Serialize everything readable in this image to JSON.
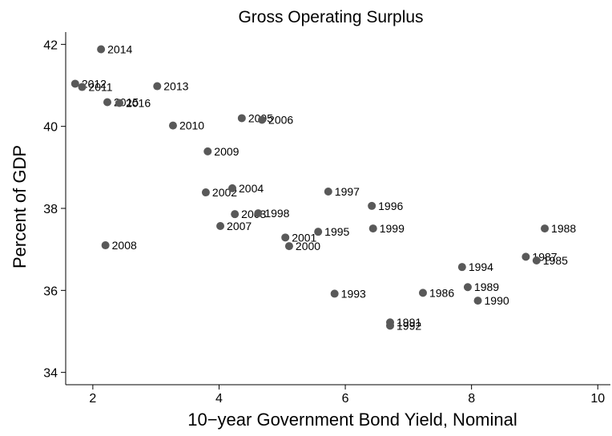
{
  "chart_data": {
    "type": "scatter",
    "title": "Gross Operating Surplus",
    "xlabel": "10−year Government Bond Yield, Nominal",
    "ylabel": "Percent of GDP",
    "color": "#595959",
    "labels": [
      "2014",
      "2012",
      "2011",
      "2013",
      "2015",
      "2016",
      "2010",
      "2005",
      "2006",
      "2009",
      "2002",
      "2004",
      "2003",
      "1998",
      "2007",
      "2008",
      "1997",
      "1996",
      "1999",
      "1995",
      "2001",
      "2000",
      "1988",
      "1987",
      "1985",
      "1994",
      "1989",
      "1990",
      "1986",
      "1993",
      "1991",
      "1992"
    ],
    "x": [
      2.13,
      1.72,
      1.83,
      3.02,
      2.23,
      2.42,
      3.27,
      4.36,
      4.68,
      3.82,
      3.79,
      4.21,
      4.25,
      4.62,
      4.02,
      2.2,
      5.73,
      6.42,
      6.44,
      5.57,
      5.05,
      5.11,
      9.16,
      8.86,
      9.03,
      7.85,
      7.94,
      8.1,
      7.23,
      5.83,
      6.71,
      6.71
    ],
    "values": [
      41.88,
      41.04,
      40.96,
      40.98,
      40.59,
      40.57,
      40.02,
      40.2,
      40.16,
      39.39,
      38.39,
      38.49,
      37.86,
      37.88,
      37.57,
      37.1,
      38.41,
      38.06,
      37.51,
      37.43,
      37.29,
      37.08,
      37.51,
      36.82,
      36.73,
      36.57,
      36.08,
      35.75,
      35.94,
      35.92,
      35.22,
      35.14
    ],
    "xlim": [
      1.57,
      10.2
    ],
    "ylim": [
      33.7,
      42.3
    ],
    "xticks": [
      2,
      4,
      6,
      8,
      10
    ],
    "yticks": [
      34,
      36,
      38,
      40,
      42
    ],
    "grid": false
  }
}
